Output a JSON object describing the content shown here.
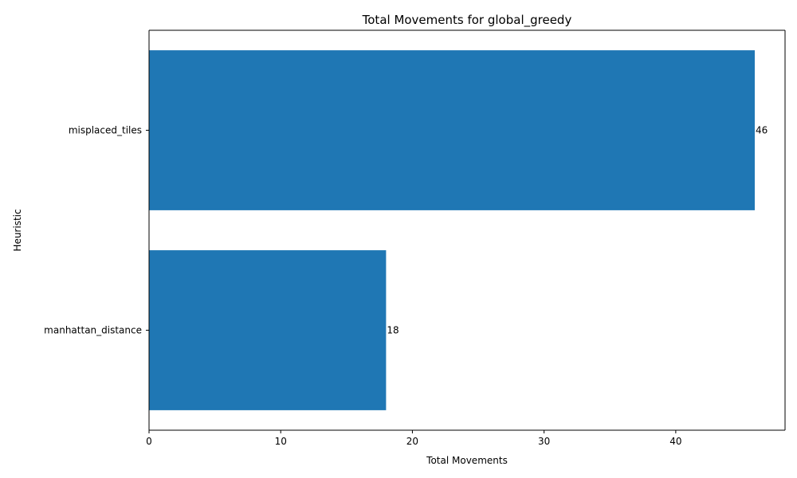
{
  "chart_data": {
    "type": "bar",
    "orientation": "horizontal",
    "title": "Total Movements for global_greedy",
    "xlabel": "Total Movements",
    "ylabel": "Heuristic",
    "categories": [
      "manhattan_distance",
      "misplaced_tiles"
    ],
    "values": [
      18,
      46
    ],
    "value_labels": [
      "18",
      "46"
    ],
    "xlim": [
      0,
      48.3
    ],
    "xticks": [
      0,
      10,
      20,
      30,
      40
    ],
    "xtick_labels": [
      "0",
      "10",
      "20",
      "30",
      "40"
    ],
    "bar_color": "#1f77b4",
    "grid": false,
    "legend": "none"
  }
}
